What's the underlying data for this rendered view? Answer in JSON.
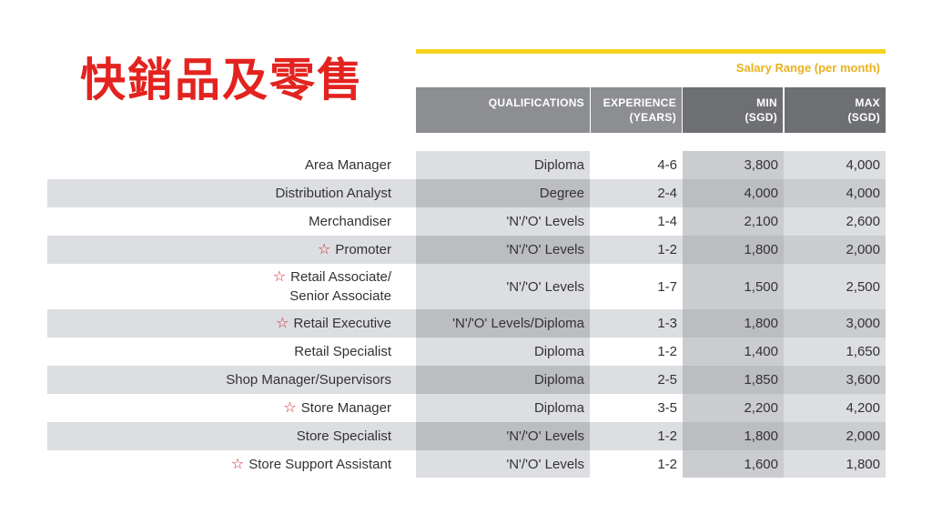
{
  "heading": "快銷品及零售",
  "salary_range_label": "Salary Range (per month)",
  "columns": {
    "qualifications": "QUALIFICATIONS",
    "experience_line1": "EXPERIENCE",
    "experience_line2": "(YEARS)",
    "min_line1": "MIN",
    "min_line2": "(SGD)",
    "max_line1": "MAX",
    "max_line2": "(SGD)"
  },
  "colors": {
    "title_red": "#e3231f",
    "accent_yellow": "#f8d21c",
    "salary_label_yellow": "#e9b21d",
    "header_gray": "#8d8e92",
    "header_dark_gray": "#6e6f72",
    "col_light": "#dddee1",
    "col_mid": "#cbcccf",
    "col_stripe_mid": "#bcbdc0",
    "star_red": "#d2262e"
  },
  "rows": [
    {
      "title": [
        "Area Manager"
      ],
      "star": false,
      "qualification": "Diploma",
      "experience": "4-6",
      "min": "3,800",
      "max": "4,000"
    },
    {
      "title": [
        "Distribution Analyst"
      ],
      "star": false,
      "qualification": "Degree",
      "experience": "2-4",
      "min": "4,000",
      "max": "4,000"
    },
    {
      "title": [
        "Merchandiser"
      ],
      "star": false,
      "qualification": "'N'/'O' Levels",
      "experience": "1-4",
      "min": "2,100",
      "max": "2,600"
    },
    {
      "title": [
        "Promoter"
      ],
      "star": true,
      "qualification": "'N'/'O' Levels",
      "experience": "1-2",
      "min": "1,800",
      "max": "2,000"
    },
    {
      "title": [
        "Retail Associate/",
        "Senior Associate"
      ],
      "star": true,
      "qualification": "'N'/'O' Levels",
      "experience": "1-7",
      "min": "1,500",
      "max": "2,500"
    },
    {
      "title": [
        "Retail Executive"
      ],
      "star": true,
      "qualification": "'N'/'O' Levels/Diploma",
      "experience": "1-3",
      "min": "1,800",
      "max": "3,000"
    },
    {
      "title": [
        "Retail Specialist"
      ],
      "star": false,
      "qualification": "Diploma",
      "experience": "1-2",
      "min": "1,400",
      "max": "1,650"
    },
    {
      "title": [
        "Shop Manager/Supervisors"
      ],
      "star": false,
      "qualification": "Diploma",
      "experience": "2-5",
      "min": "1,850",
      "max": "3,600"
    },
    {
      "title": [
        "Store Manager"
      ],
      "star": true,
      "qualification": "Diploma",
      "experience": "3-5",
      "min": "2,200",
      "max": "4,200"
    },
    {
      "title": [
        "Store Specialist"
      ],
      "star": false,
      "qualification": "'N'/'O' Levels",
      "experience": "1-2",
      "min": "1,800",
      "max": "2,000"
    },
    {
      "title": [
        "Store Support Assistant"
      ],
      "star": true,
      "qualification": "'N'/'O' Levels",
      "experience": "1-2",
      "min": "1,600",
      "max": "1,800"
    }
  ]
}
